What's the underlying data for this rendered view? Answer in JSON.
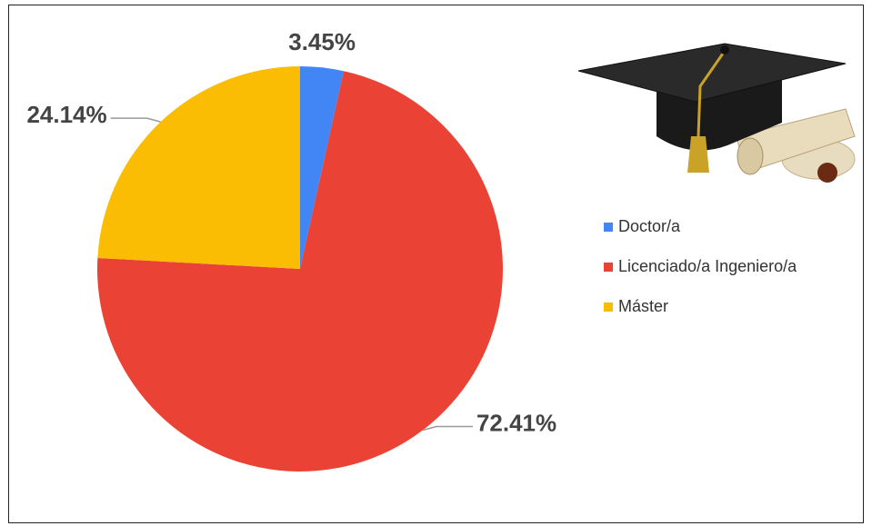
{
  "chart_data": {
    "type": "pie",
    "categories": [
      "Doctor/a",
      "Licenciado/a Ingeniero/a",
      "Máster"
    ],
    "values": [
      3.45,
      72.41,
      24.14
    ],
    "value_labels": [
      "3.45%",
      "72.41%",
      "24.14%"
    ],
    "colors": [
      "#4285f4",
      "#ea4335",
      "#fbbc04"
    ]
  }
}
